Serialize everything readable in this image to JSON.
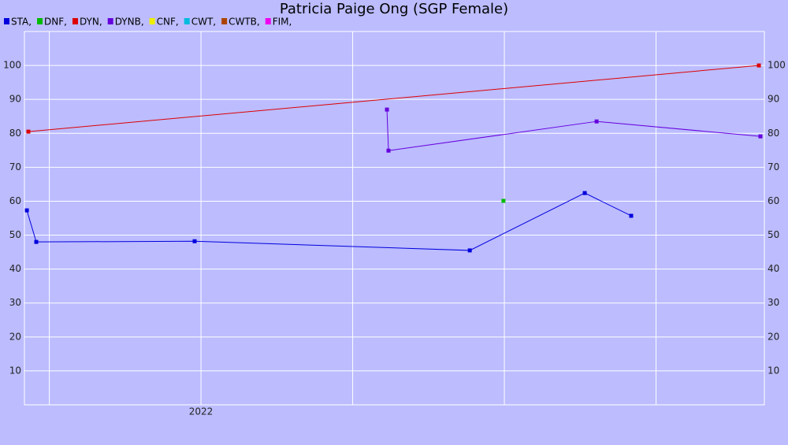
{
  "chart_data": {
    "type": "line",
    "title": "Patricia Paige Ong (SGP Female)",
    "series": [
      {
        "name": "STA,",
        "color": "#0000dd",
        "x": [
          2021.426,
          2021.457,
          2021.979,
          2022.886,
          2023.265,
          2023.418
        ],
        "values": [
          57.3,
          48.0,
          48.2,
          45.5,
          62.4,
          55.7
        ]
      },
      {
        "name": "DNF,",
        "color": "#00bb00",
        "x": [
          2022.997
        ],
        "values": [
          60.1
        ]
      },
      {
        "name": "DYN,",
        "color": "#dd0000",
        "x": [
          2021.431,
          2023.839
        ],
        "values": [
          80.5,
          100
        ]
      },
      {
        "name": "DYNB,",
        "color": "#6600dd",
        "x": [
          2022.613,
          2022.618,
          2023.304,
          2023.844
        ],
        "values": [
          87.0,
          74.9,
          83.5,
          79.1
        ]
      },
      {
        "name": "CNF,",
        "color": "#eeee00",
        "x": [],
        "values": []
      },
      {
        "name": "CWT,",
        "color": "#00bbdd",
        "x": [],
        "values": []
      },
      {
        "name": "CWTB,",
        "color": "#aa4400",
        "x": [],
        "values": []
      },
      {
        "name": "FIM,",
        "color": "#ee00ee",
        "x": [],
        "values": []
      }
    ],
    "xlim": [
      2021.418,
      2023.857
    ],
    "xticks": [
      {
        "value": 2022,
        "label": "2022"
      }
    ],
    "xminor": [
      2021.5,
      2022.5,
      2023,
      2023.5
    ],
    "ylim": [
      0,
      110
    ],
    "yticks": [
      10,
      20,
      30,
      40,
      50,
      60,
      70,
      80,
      90,
      100
    ],
    "grid": true
  }
}
